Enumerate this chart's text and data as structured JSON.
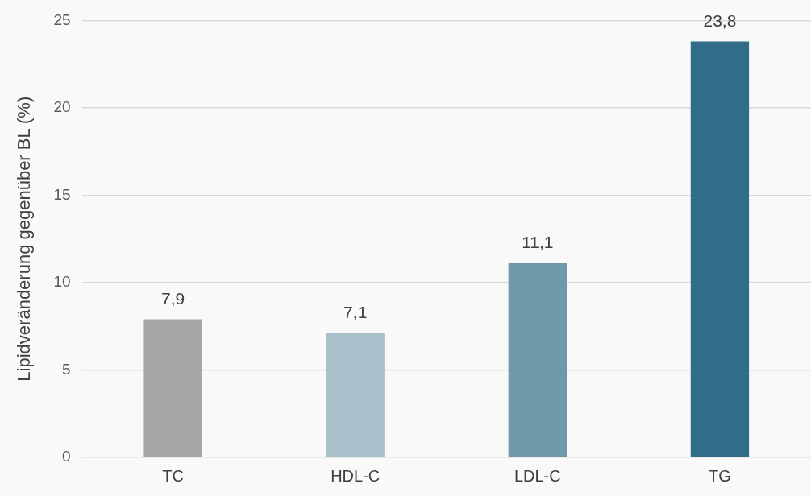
{
  "chart_data": {
    "type": "bar",
    "ylabel": "Lipidveränderung gegenüber BL (%)",
    "categories": [
      "TC",
      "HDL-C",
      "LDL-C",
      "TG"
    ],
    "values": [
      7.9,
      7.1,
      11.1,
      23.8
    ],
    "colors": [
      "#a6a6a6",
      "#a9c1cb",
      "#6f98aa",
      "#316d89"
    ],
    "value_labels": [
      "7,9",
      "7,1",
      "11,1",
      "23,8"
    ],
    "ylim": [
      0,
      25
    ],
    "yticks": [
      0,
      5,
      10,
      15,
      20,
      25
    ],
    "grid": "y"
  }
}
